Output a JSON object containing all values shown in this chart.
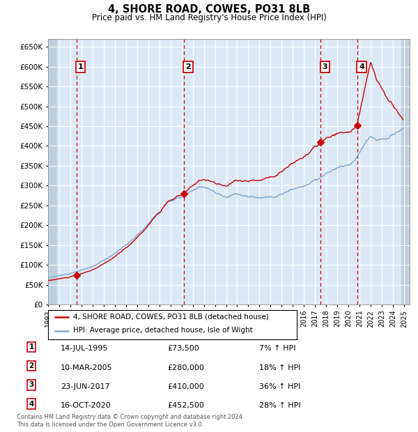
{
  "title": "4, SHORE ROAD, COWES, PO31 8LB",
  "subtitle": "Price paid vs. HM Land Registry's House Price Index (HPI)",
  "legend_line1": "4, SHORE ROAD, COWES, PO31 8LB (detached house)",
  "legend_line2": "HPI: Average price, detached house, Isle of Wight",
  "footer1": "Contains HM Land Registry data © Crown copyright and database right 2024.",
  "footer2": "This data is licensed under the Open Government Licence v3.0.",
  "sales": [
    {
      "num": 1,
      "date": "14-JUL-1995",
      "decimal": 1995.54,
      "price": 73500,
      "pct": "7% ↑ HPI"
    },
    {
      "num": 2,
      "date": "10-MAR-2005",
      "decimal": 2005.19,
      "price": 280000,
      "pct": "18% ↑ HPI"
    },
    {
      "num": 3,
      "date": "23-JUN-2017",
      "decimal": 2017.48,
      "price": 410000,
      "pct": "36% ↑ HPI"
    },
    {
      "num": 4,
      "date": "16-OCT-2020",
      "decimal": 2020.79,
      "price": 452500,
      "pct": "28% ↑ HPI"
    }
  ],
  "hpi_color": "#7ba7d4",
  "price_color": "#cc0000",
  "vline_color": "#cc0000",
  "background_plot": "#dce9f5",
  "background_hatch": "#c0d0e0",
  "ylim": [
    0,
    670000
  ],
  "ytick_step": 50000,
  "xlim_start": 1993.0,
  "xlim_end": 2025.5,
  "xticks": [
    1993,
    1994,
    1995,
    1996,
    1997,
    1998,
    1999,
    2000,
    2001,
    2002,
    2003,
    2004,
    2005,
    2006,
    2007,
    2008,
    2009,
    2010,
    2011,
    2012,
    2013,
    2014,
    2015,
    2016,
    2017,
    2018,
    2019,
    2020,
    2021,
    2022,
    2023,
    2024,
    2025
  ]
}
